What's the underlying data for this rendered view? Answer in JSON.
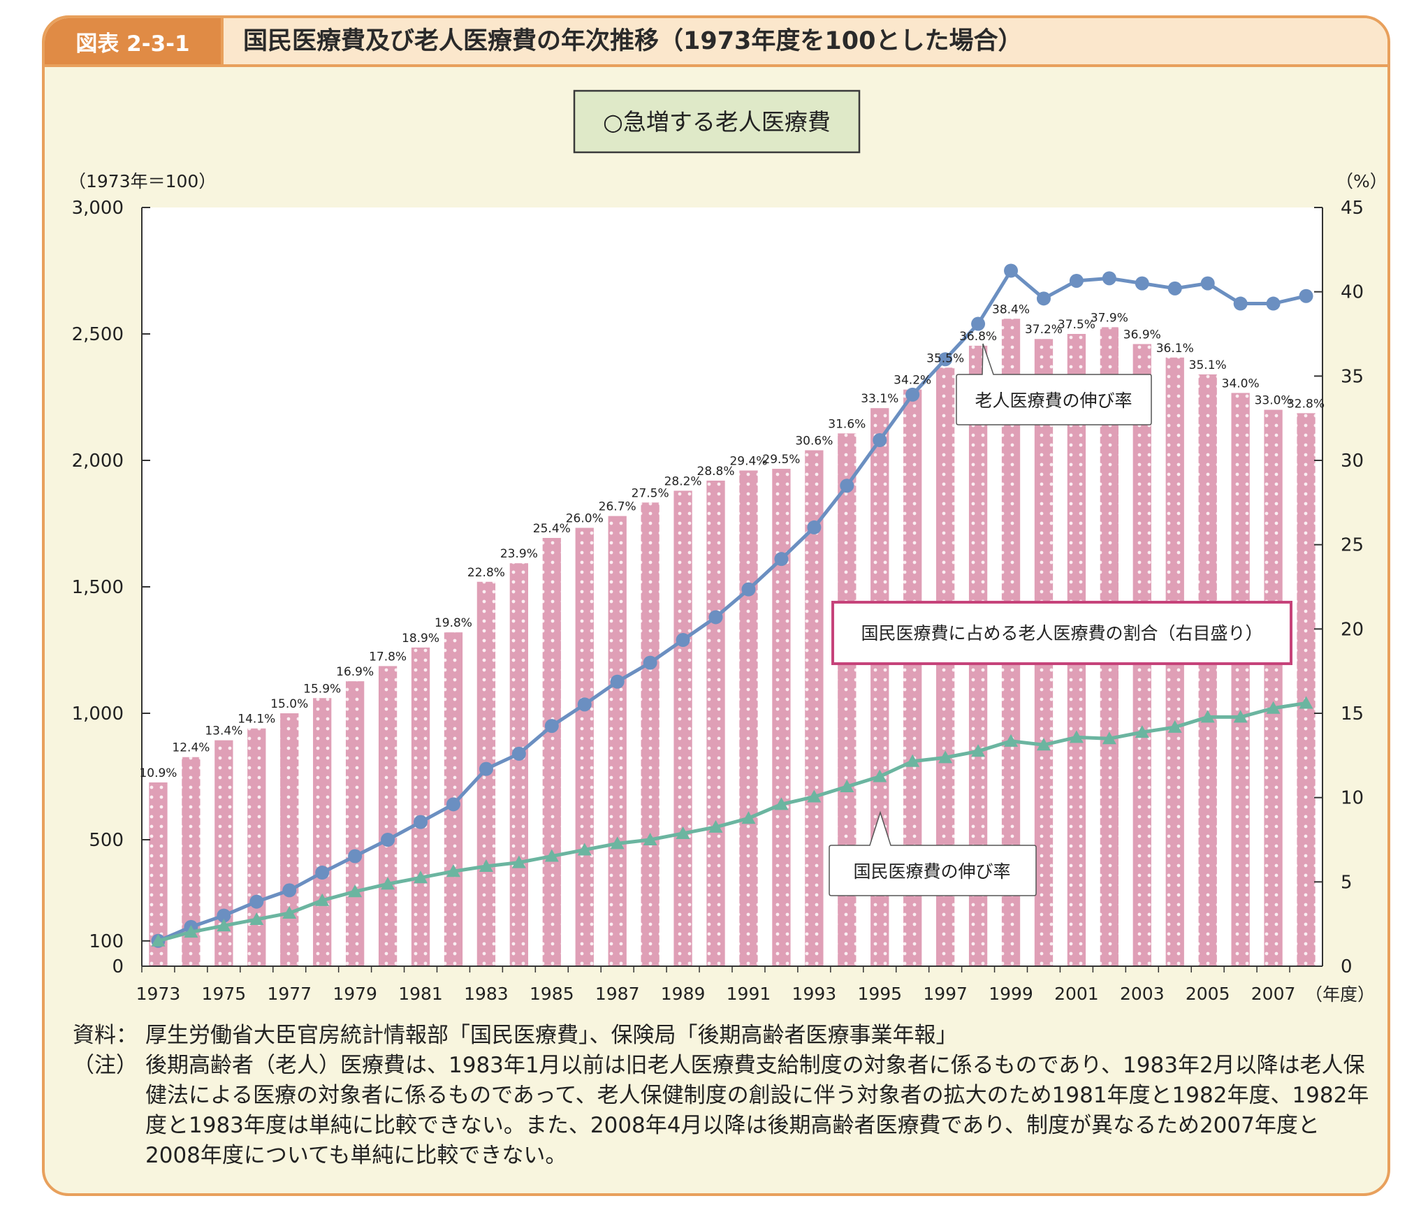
{
  "figure_label": "図表 2-3-1",
  "title": "国民医療費及び老人医療費の年次推移（1973年度を100とした場合）",
  "subtitle_box": "○急増する老人医療費",
  "notes": [
    {
      "key": "資料：",
      "text": "厚生労働省大臣官房統計情報部「国民医療費」、保険局「後期高齢者医療事業年報」"
    },
    {
      "key": "（注）",
      "text": "後期高齢者（老人）医療費は、1983年1月以前は旧老人医療費支給制度の対象者に係るものであり、1983年2月以降は老人保健法による医療の対象者に係るものであって、老人保健制度の創設に伴う対象者の拡大のため1981年度と1982年度、1982年度と1983年度は単純に比較できない。また、2008年4月以降は後期高齢者医療費であり、制度が異なるため2007年度と2008年度についても単純に比較できない。"
    }
  ],
  "colors": {
    "bar": "#df9fb6",
    "dot": "#fbeef2",
    "elderly_line": "#6b8fc1",
    "national_line": "#6bb5a0",
    "share_box_border": "#c6437a",
    "frame": "#e8a05c",
    "frame_fill": "#f8f5de",
    "plot_fill": "#ffffff",
    "subtitle_border": "#3a3a3a",
    "subtitle_fill": "#dfe9c8"
  },
  "chart_data": {
    "type": "bar",
    "categories": [
      "1973",
      "1974",
      "1975",
      "1976",
      "1977",
      "1978",
      "1979",
      "1980",
      "1981",
      "1982",
      "1983",
      "1984",
      "1985",
      "1986",
      "1987",
      "1988",
      "1989",
      "1990",
      "1991",
      "1992",
      "1993",
      "1994",
      "1995",
      "1996",
      "1997",
      "1998",
      "1999",
      "2000",
      "2001",
      "2002",
      "2003",
      "2004",
      "2005",
      "2006",
      "2007",
      "2008"
    ],
    "x_tick_labels": [
      "1973",
      "1975",
      "1977",
      "1979",
      "1981",
      "1983",
      "1985",
      "1987",
      "1989",
      "1991",
      "1993",
      "1995",
      "1997",
      "1999",
      "2001",
      "2003",
      "2005",
      "2007"
    ],
    "x_unit": "（年度）",
    "left_axis": {
      "label": "（1973年＝100）",
      "ticks": [
        0,
        100,
        500,
        1000,
        1500,
        2000,
        2500,
        3000
      ],
      "tick_labels": [
        "0",
        "100",
        "500",
        "1,000",
        "1,500",
        "2,000",
        "2,500",
        "3,000"
      ],
      "range": [
        0,
        3000
      ]
    },
    "right_axis": {
      "label": "（%）",
      "ticks": [
        0,
        5,
        10,
        15,
        20,
        25,
        30,
        35,
        40,
        45
      ],
      "range": [
        0,
        45
      ]
    },
    "series": [
      {
        "name": "国民医療費に占める老人医療費の割合（右目盛り）",
        "kind": "bar",
        "axis": "right",
        "values": [
          10.9,
          12.4,
          13.4,
          14.1,
          15.0,
          15.9,
          16.9,
          17.8,
          18.9,
          19.8,
          22.8,
          23.9,
          25.4,
          26.0,
          26.7,
          27.5,
          28.2,
          28.8,
          29.4,
          29.5,
          30.6,
          31.6,
          33.1,
          34.2,
          35.5,
          36.8,
          38.4,
          37.2,
          37.5,
          37.9,
          36.9,
          36.1,
          35.1,
          34.0,
          33.0,
          32.8
        ],
        "labels": [
          "10.9%",
          "12.4%",
          "13.4%",
          "14.1%",
          "15.0%",
          "15.9%",
          "16.9%",
          "17.8%",
          "18.9%",
          "19.8%",
          "22.8%",
          "23.9%",
          "25.4%",
          "26.0%",
          "26.7%",
          "27.5%",
          "28.2%",
          "28.8%",
          "29.4%",
          "29.5%",
          "30.6%",
          "31.6%",
          "33.1%",
          "34.2%",
          "35.5%",
          "36.8%",
          "38.4%",
          "37.2%",
          "37.5%",
          "37.9%",
          "36.9%",
          "36.1%",
          "35.1%",
          "34.0%",
          "33.0%",
          "32.8%"
        ]
      },
      {
        "name": "老人医療費の伸び率",
        "kind": "line",
        "marker": "circle",
        "axis": "left",
        "values": [
          100,
          155,
          200,
          255,
          300,
          370,
          435,
          500,
          570,
          640,
          780,
          840,
          950,
          1035,
          1125,
          1200,
          1290,
          1380,
          1490,
          1610,
          1735,
          1900,
          2080,
          2260,
          2400,
          2540,
          2750,
          2640,
          2710,
          2720,
          2700,
          2680,
          2700,
          2620,
          2620,
          2650
        ]
      },
      {
        "name": "国民医療費の伸び率",
        "kind": "line",
        "marker": "triangle",
        "axis": "left",
        "values": [
          100,
          135,
          160,
          185,
          210,
          260,
          295,
          325,
          350,
          375,
          395,
          410,
          435,
          460,
          485,
          500,
          525,
          550,
          585,
          640,
          670,
          710,
          750,
          810,
          825,
          850,
          890,
          875,
          905,
          900,
          925,
          945,
          985,
          985,
          1020,
          1040
        ]
      }
    ],
    "callouts": [
      "老人医療費の伸び率",
      "国民医療費の伸び率",
      "国民医療費に占める老人医療費の割合（右目盛り）"
    ]
  }
}
